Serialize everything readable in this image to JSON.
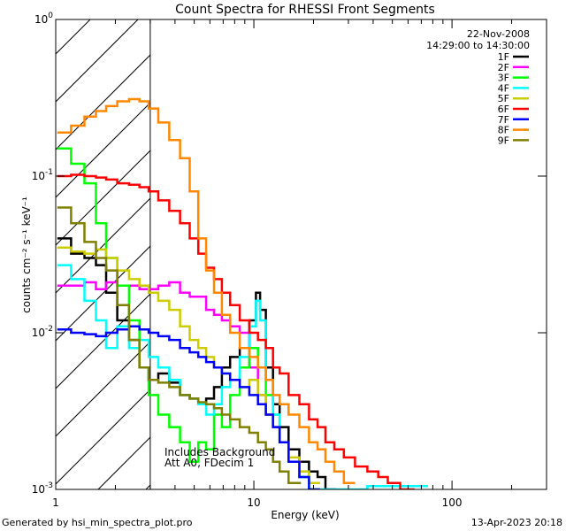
{
  "chart_data": {
    "type": "line",
    "title": "Count Spectra for RHESSI Front Segments",
    "xlabel": "Energy (keV)",
    "ylabel": "counts cm⁻² s⁻¹ keV⁻¹",
    "xscale": "log",
    "yscale": "log",
    "xlim": [
      1,
      300
    ],
    "ylim": [
      0.001,
      1
    ],
    "x_ticks": [
      {
        "value": 1,
        "label": "1"
      },
      {
        "value": 10,
        "label": "10"
      },
      {
        "value": 100,
        "label": "100"
      }
    ],
    "y_ticks": [
      {
        "value": 0.001,
        "base": "10",
        "exp": "-3"
      },
      {
        "value": 0.01,
        "base": "10",
        "exp": "-2"
      },
      {
        "value": 0.1,
        "base": "10",
        "exp": "-1"
      },
      {
        "value": 1,
        "base": "10",
        "exp": "0"
      }
    ],
    "date_label": "22-Nov-2008",
    "time_label": "14:29:00 to 14:30:00",
    "annotation_lines": [
      "Includes Background",
      "Att A0, FDecim 1"
    ],
    "hatched_region_max_kev": 3,
    "series": [
      {
        "name": "1F",
        "color": "#000000",
        "x": [
          1.1,
          1.3,
          1.5,
          1.7,
          1.9,
          2.2,
          2.5,
          2.8,
          3.1,
          3.5,
          4.0,
          4.5,
          5.0,
          5.5,
          6.0,
          6.6,
          7.2,
          8.0,
          9.0,
          10.0,
          10.5,
          11.0,
          12.0,
          13.0,
          14.0,
          16.0,
          18.0,
          20.0,
          22.0,
          24.0
        ],
        "y": [
          0.04,
          0.032,
          0.03,
          0.027,
          0.018,
          0.012,
          0.009,
          0.006,
          0.005,
          0.0055,
          0.0048,
          0.004,
          0.0038,
          0.0035,
          0.0038,
          0.0045,
          0.006,
          0.007,
          0.008,
          0.012,
          0.018,
          0.014,
          0.006,
          0.0035,
          0.0025,
          0.0018,
          0.0015,
          0.0013,
          0.0012,
          0.001
        ]
      },
      {
        "name": "2F",
        "color": "#ff00ff",
        "x": [
          1.1,
          1.3,
          1.5,
          1.7,
          1.9,
          2.2,
          2.5,
          2.8,
          3.1,
          3.5,
          4.0,
          4.5,
          5.0,
          5.5,
          6.0,
          6.6,
          7.2,
          8.0,
          9.0,
          10.0,
          11.0,
          12.0,
          13.0,
          14.0,
          16.0
        ],
        "y": [
          0.02,
          0.02,
          0.021,
          0.019,
          0.021,
          0.02,
          0.02,
          0.019,
          0.019,
          0.02,
          0.021,
          0.018,
          0.017,
          0.017,
          0.014,
          0.013,
          0.012,
          0.011,
          0.01,
          0.006,
          0.004,
          0.003,
          0.0025,
          0.002,
          0.0015
        ]
      },
      {
        "name": "3F",
        "color": "#00ff00",
        "x": [
          1.1,
          1.3,
          1.5,
          1.7,
          1.9,
          2.2,
          2.5,
          2.8,
          3.1,
          3.5,
          4.0,
          4.5,
          5.0,
          5.5,
          6.0,
          6.6,
          7.2,
          8.0,
          9.0,
          10.0,
          11.0,
          12.0,
          13.0,
          14.0,
          16.0,
          18.0,
          20.0
        ],
        "y": [
          0.15,
          0.12,
          0.09,
          0.05,
          0.03,
          0.02,
          0.012,
          0.006,
          0.004,
          0.003,
          0.0025,
          0.002,
          0.0015,
          0.002,
          0.0018,
          0.003,
          0.0025,
          0.004,
          0.006,
          0.008,
          0.006,
          0.004,
          0.003,
          0.002,
          0.0015,
          0.0012,
          0.001
        ]
      },
      {
        "name": "4F",
        "color": "#00ffff",
        "x": [
          1.1,
          1.3,
          1.5,
          1.7,
          1.9,
          2.2,
          2.5,
          2.8,
          3.1,
          3.5,
          4.0,
          4.5,
          5.0,
          5.5,
          6.0,
          6.6,
          7.2,
          8.0,
          9.0,
          10.0,
          10.5,
          11.0,
          12.0,
          13.0,
          14.0,
          16.0,
          18.0,
          20.0,
          70.0
        ],
        "y": [
          0.027,
          0.022,
          0.016,
          0.012,
          0.008,
          0.011,
          0.008,
          0.009,
          0.007,
          0.006,
          0.005,
          0.004,
          0.0038,
          0.0035,
          0.003,
          0.0035,
          0.0045,
          0.005,
          0.007,
          0.011,
          0.016,
          0.012,
          0.005,
          0.003,
          0.002,
          0.0015,
          0.0012,
          0.001,
          0.00105
        ]
      },
      {
        "name": "5F",
        "color": "#cccc00",
        "x": [
          1.1,
          1.3,
          1.5,
          1.7,
          1.9,
          2.2,
          2.5,
          2.8,
          3.1,
          3.5,
          4.0,
          4.5,
          5.0,
          5.5,
          6.0,
          6.6,
          7.2,
          8.0,
          9.0,
          10.0,
          11.0,
          12.0,
          13.0,
          14.0,
          16.0,
          18.0,
          20.0
        ],
        "y": [
          0.035,
          0.033,
          0.032,
          0.034,
          0.03,
          0.025,
          0.022,
          0.02,
          0.018,
          0.016,
          0.014,
          0.011,
          0.009,
          0.008,
          0.007,
          0.006,
          0.0055,
          0.005,
          0.0045,
          0.005,
          0.004,
          0.003,
          0.0025,
          0.002,
          0.0016,
          0.0013,
          0.0011
        ]
      },
      {
        "name": "6F",
        "color": "#ff0000",
        "x": [
          1.1,
          1.3,
          1.5,
          1.7,
          1.9,
          2.2,
          2.5,
          2.8,
          3.1,
          3.5,
          4.0,
          4.5,
          5.0,
          5.5,
          6.0,
          6.6,
          7.2,
          8.0,
          9.0,
          10.0,
          11.0,
          12.0,
          13.0,
          14.0,
          16.0,
          18.0,
          20.0,
          22.0,
          24.0,
          27.0,
          30.0,
          35.0,
          40.0,
          45.0,
          50.0,
          60.0
        ],
        "y": [
          0.1,
          0.102,
          0.1,
          0.098,
          0.095,
          0.09,
          0.088,
          0.085,
          0.08,
          0.07,
          0.06,
          0.05,
          0.04,
          0.032,
          0.026,
          0.022,
          0.018,
          0.015,
          0.012,
          0.01,
          0.009,
          0.008,
          0.006,
          0.0055,
          0.004,
          0.0035,
          0.0028,
          0.0025,
          0.002,
          0.0018,
          0.0016,
          0.0014,
          0.0013,
          0.0012,
          0.0011,
          0.001
        ]
      },
      {
        "name": "7F",
        "color": "#0000ff",
        "x": [
          1.1,
          1.3,
          1.5,
          1.7,
          1.9,
          2.2,
          2.5,
          2.8,
          3.1,
          3.5,
          4.0,
          4.5,
          5.0,
          5.5,
          6.0,
          6.6,
          7.2,
          8.0,
          9.0,
          10.0,
          11.0,
          12.0,
          13.0,
          14.0,
          16.0,
          18.0,
          20.0
        ],
        "y": [
          0.0105,
          0.01,
          0.0098,
          0.0095,
          0.01,
          0.0105,
          0.011,
          0.0105,
          0.01,
          0.0095,
          0.009,
          0.008,
          0.0075,
          0.007,
          0.0065,
          0.006,
          0.0055,
          0.005,
          0.0045,
          0.004,
          0.0035,
          0.003,
          0.0025,
          0.002,
          0.0015,
          0.0012,
          0.001
        ]
      },
      {
        "name": "8F",
        "color": "#ff8800",
        "x": [
          1.1,
          1.3,
          1.5,
          1.7,
          1.9,
          2.2,
          2.5,
          2.8,
          3.1,
          3.5,
          4.0,
          4.5,
          5.0,
          5.5,
          6.0,
          6.6,
          7.2,
          8.0,
          9.0,
          10.0,
          11.0,
          12.0,
          13.0,
          14.0,
          16.0,
          18.0,
          20.0,
          22.0,
          24.0,
          27.0,
          30.0
        ],
        "y": [
          0.19,
          0.21,
          0.24,
          0.26,
          0.28,
          0.3,
          0.31,
          0.3,
          0.27,
          0.22,
          0.17,
          0.13,
          0.08,
          0.04,
          0.025,
          0.018,
          0.013,
          0.01,
          0.008,
          0.007,
          0.006,
          0.005,
          0.004,
          0.0035,
          0.003,
          0.0025,
          0.002,
          0.0018,
          0.0015,
          0.0013,
          0.0011
        ]
      },
      {
        "name": "9F",
        "color": "#808000",
        "x": [
          1.1,
          1.3,
          1.5,
          1.7,
          1.9,
          2.2,
          2.5,
          2.8,
          3.1,
          3.5,
          4.0,
          4.5,
          5.0,
          5.5,
          6.0,
          6.6,
          7.2,
          8.0,
          9.0,
          10.0,
          11.0,
          12.0,
          13.0,
          14.0,
          16.0
        ],
        "y": [
          0.063,
          0.05,
          0.038,
          0.03,
          0.025,
          0.015,
          0.009,
          0.006,
          0.005,
          0.0048,
          0.0045,
          0.004,
          0.0038,
          0.0036,
          0.0035,
          0.0033,
          0.003,
          0.0028,
          0.0025,
          0.0023,
          0.002,
          0.0018,
          0.0015,
          0.0013,
          0.0011
        ]
      }
    ]
  },
  "footer": {
    "generated_by": "Generated by hsi_min_spectra_plot.pro",
    "timestamp": "13-Apr-2023 20:18"
  },
  "colors": {
    "background": "#ffffff",
    "axes": "#000000"
  }
}
